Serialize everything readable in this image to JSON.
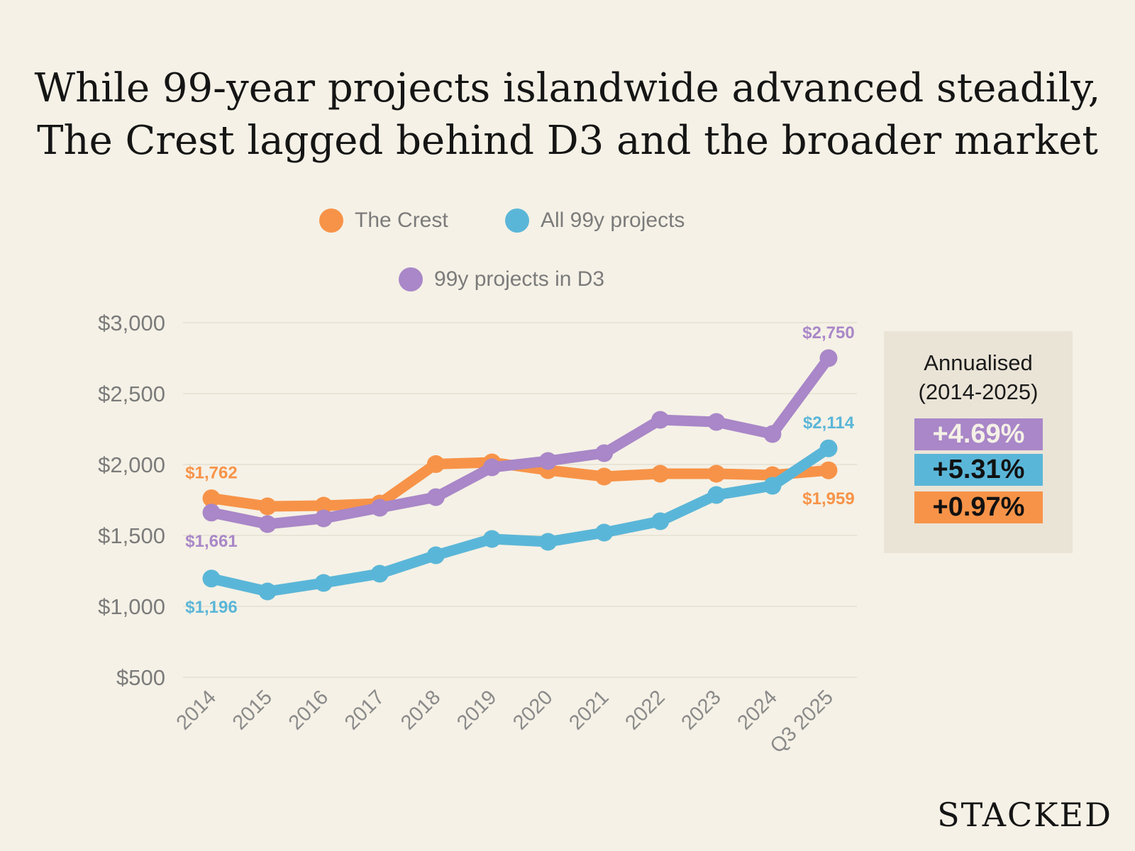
{
  "title": {
    "line1": "While 99-year projects islandwide advanced steadily,",
    "line2": "The Crest lagged behind D3 and the broader market"
  },
  "legend": {
    "crest": "The Crest",
    "all": "All 99y projects",
    "d3": "99y projects in D3"
  },
  "colors": {
    "background": "#f5f1e6",
    "crest": "#f79348",
    "all": "#5ab6d8",
    "d3": "#a987c8",
    "grid": "#e4dfd2",
    "panel": "#eae4d7"
  },
  "chart_data": {
    "type": "line",
    "title": "While 99-year projects islandwide advanced steadily, The Crest lagged behind D3 and the broader market",
    "xlabel": "",
    "ylabel": "",
    "categories": [
      "2014",
      "2015",
      "2016",
      "2017",
      "2018",
      "2019",
      "2020",
      "2021",
      "2022",
      "2023",
      "2024",
      "Q3 2025"
    ],
    "ylim": [
      500,
      3000
    ],
    "yticks": [
      500,
      1000,
      1500,
      2000,
      2500,
      3000
    ],
    "ytick_labels": [
      "$500",
      "$1,000",
      "$1,500",
      "$2,000",
      "$2,500",
      "$3,000"
    ],
    "grid": true,
    "legend_position": "top-center",
    "series": [
      {
        "key": "crest",
        "name": "The Crest",
        "color": "#f79348",
        "values": [
          1762,
          1705,
          1710,
          1725,
          2003,
          2015,
          1960,
          1915,
          1935,
          1935,
          1925,
          1959
        ]
      },
      {
        "key": "all",
        "name": "All 99y projects",
        "color": "#5ab6d8",
        "values": [
          1196,
          1105,
          1165,
          1230,
          1360,
          1475,
          1455,
          1520,
          1600,
          1785,
          1850,
          2114
        ]
      },
      {
        "key": "d3",
        "name": "99y projects in D3",
        "color": "#a987c8",
        "values": [
          1661,
          1580,
          1620,
          1695,
          1770,
          1980,
          2025,
          2080,
          2315,
          2300,
          2215,
          2750
        ]
      }
    ],
    "data_labels": [
      {
        "text": "$1,762",
        "series": "crest",
        "index": 0,
        "pos": "above"
      },
      {
        "text": "$1,661",
        "series": "d3",
        "index": 0,
        "pos": "below"
      },
      {
        "text": "$1,196",
        "series": "all",
        "index": 0,
        "pos": "below"
      },
      {
        "text": "$2,750",
        "series": "d3",
        "index": 11,
        "pos": "above"
      },
      {
        "text": "$2,114",
        "series": "all",
        "index": 11,
        "pos": "above"
      },
      {
        "text": "$1,959",
        "series": "crest",
        "index": 11,
        "pos": "below"
      }
    ]
  },
  "annualised": {
    "title_line1": "Annualised",
    "title_line2": "(2014-2025)",
    "d3": "+4.69%",
    "all": "+5.31%",
    "crest": "+0.97%"
  },
  "brand": "STACKED"
}
